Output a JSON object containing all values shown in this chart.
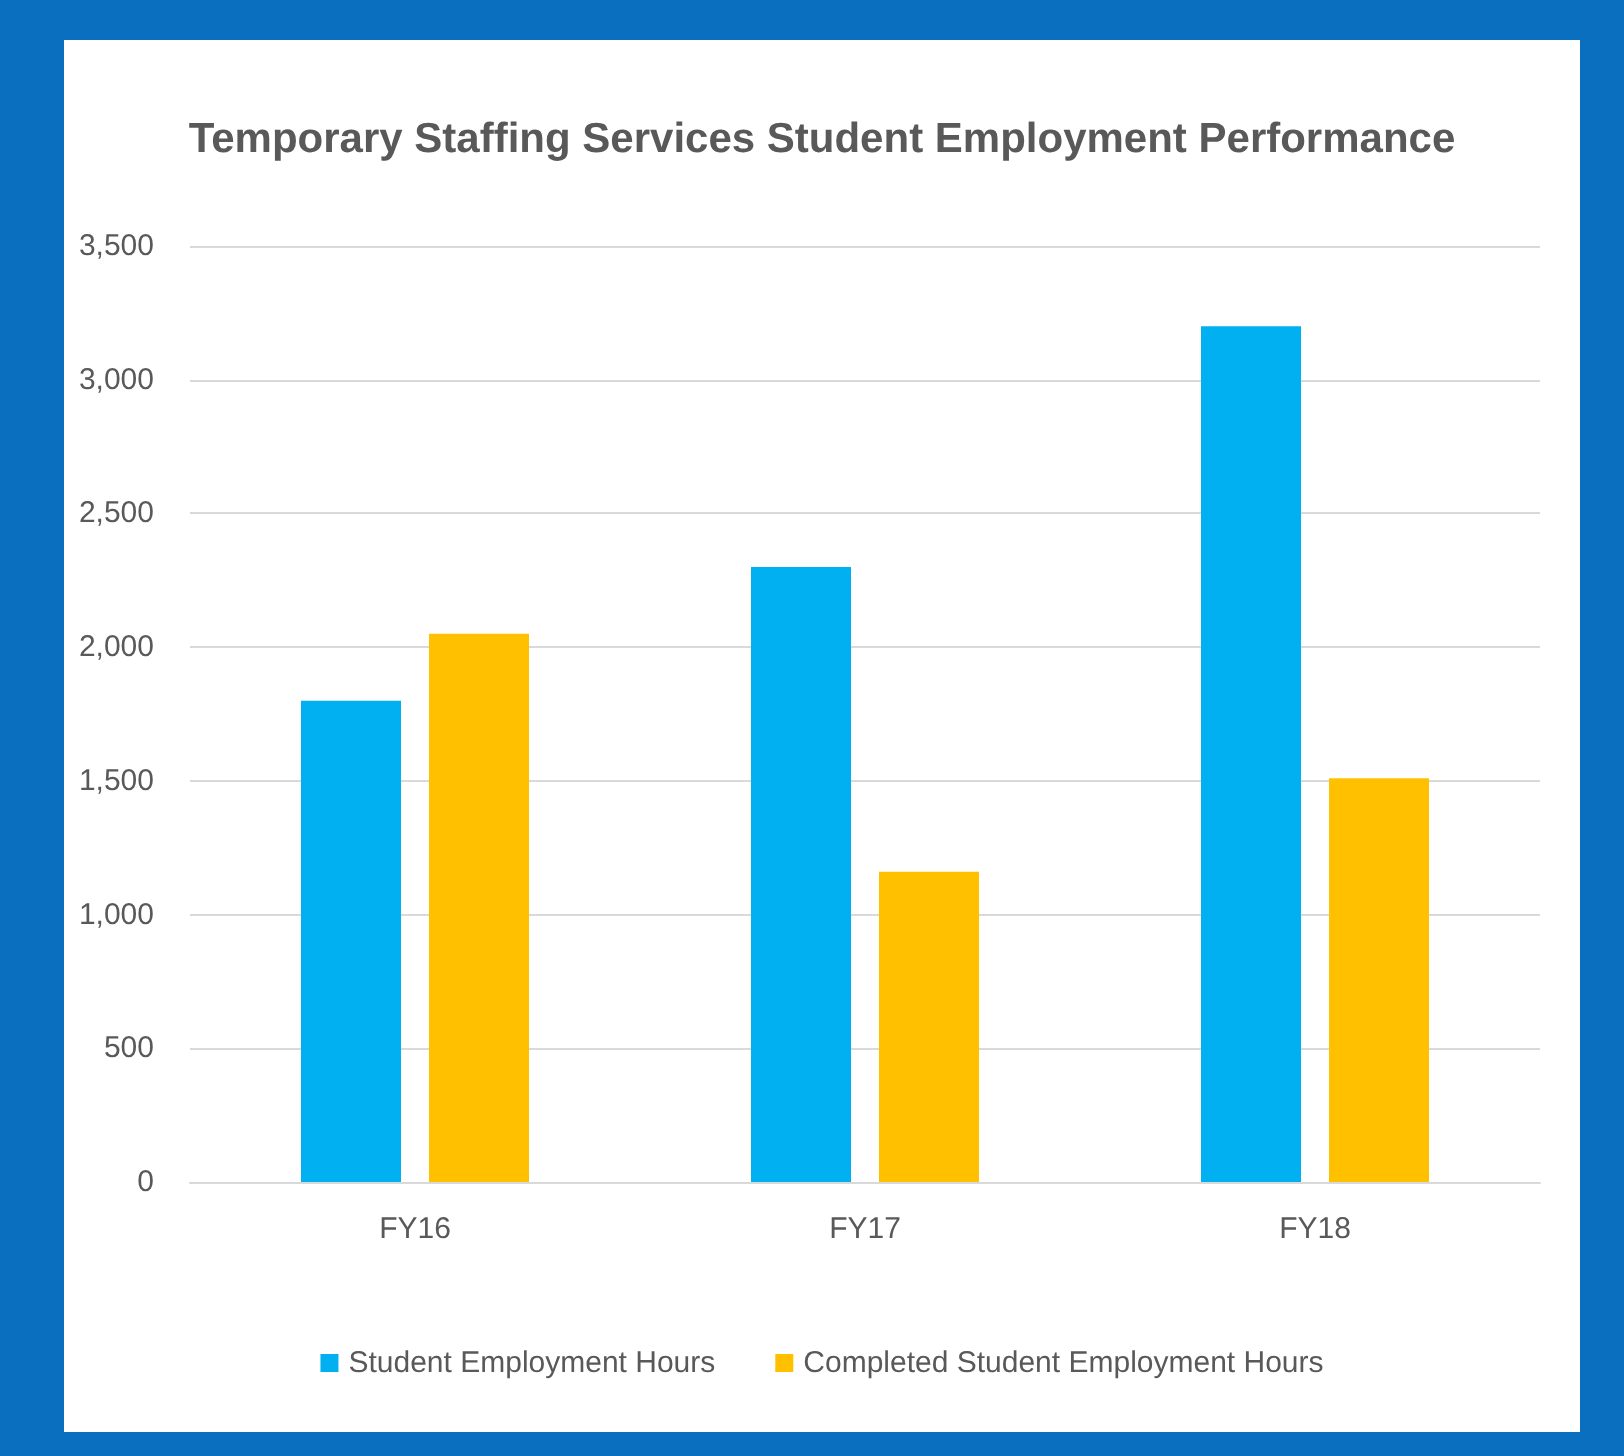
{
  "chart_data": {
    "type": "bar",
    "title": "Temporary Staffing Services Student Employment Performance",
    "categories": [
      "FY16",
      "FY17",
      "FY18"
    ],
    "series": [
      {
        "name": "Student Employment Hours",
        "color": "#00b0f0",
        "values": [
          1800,
          2300,
          3200
        ]
      },
      {
        "name": "Completed Student Employment Hours",
        "color": "#ffc000",
        "values": [
          2050,
          1160,
          1510
        ]
      }
    ],
    "ylim": [
      0,
      3500
    ],
    "yticks": [
      {
        "value": 0,
        "label": "0"
      },
      {
        "value": 500,
        "label": "500"
      },
      {
        "value": 1000,
        "label": "1,000"
      },
      {
        "value": 1500,
        "label": "1,500"
      },
      {
        "value": 2000,
        "label": "2,000"
      },
      {
        "value": 2500,
        "label": "2,500"
      },
      {
        "value": 3000,
        "label": "3,000"
      },
      {
        "value": 3500,
        "label": "3,500"
      }
    ],
    "grid": "y",
    "legend": "bottom"
  }
}
